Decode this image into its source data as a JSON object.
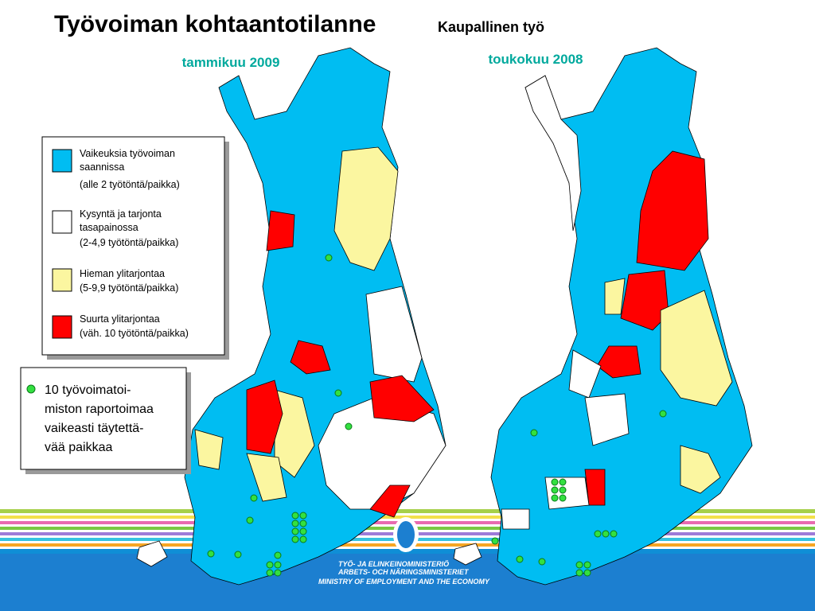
{
  "header": {
    "title": "Työvoiman kohtaantotilanne",
    "subtitle": "Kaupallinen työ"
  },
  "maps": [
    {
      "label": "tammikuu 2009"
    },
    {
      "label": "toukokuu 2008"
    }
  ],
  "legend": {
    "items": [
      {
        "lines": [
          "Vaikeuksia työvoiman",
          "saannissa",
          "(alle 2 työtöntä/paikka)"
        ]
      },
      {
        "lines": [
          "Kysyntä ja tarjonta",
          "tasapainossa",
          "(2-4,9 työtöntä/paikka)"
        ]
      },
      {
        "lines": [
          "Hieman ylitarjontaa",
          "(5-9,9 työtöntä/paikka)"
        ]
      },
      {
        "lines": [
          "Suurta ylitarjontaa",
          "(väh. 10 työtöntä/paikka)"
        ]
      }
    ]
  },
  "note": {
    "lines": [
      "10 työvoimatoi-",
      "miston raportoimaa",
      "vaikeasti täytettä-",
      "vää paikkaa"
    ]
  },
  "logo": {
    "lines": [
      "TYÖ- JA ELINKEINOMINISTERIÖ",
      "ARBETS- OCH NÄRINGSMINISTERIET",
      "MINISTRY OF EMPLOYMENT AND THE ECONOMY"
    ]
  }
}
